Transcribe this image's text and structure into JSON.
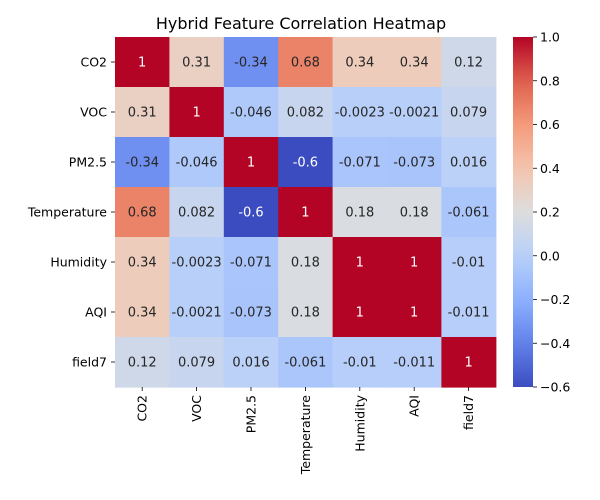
{
  "chart_data": {
    "type": "heatmap",
    "title": "Hybrid Feature Correlation Heatmap",
    "xlabel": "",
    "ylabel": "",
    "rows": [
      "CO2",
      "VOC",
      "PM2.5",
      "Temperature",
      "Humidity",
      "AQI",
      "field7"
    ],
    "columns": [
      "CO2",
      "VOC",
      "PM2.5",
      "Temperature",
      "Humidity",
      "AQI",
      "field7"
    ],
    "values": [
      [
        1,
        0.31,
        -0.34,
        0.68,
        0.34,
        0.34,
        0.12
      ],
      [
        0.31,
        1,
        -0.046,
        0.082,
        -0.0023,
        -0.0021,
        0.079
      ],
      [
        -0.34,
        -0.046,
        1,
        -0.6,
        -0.071,
        -0.073,
        0.016
      ],
      [
        0.68,
        0.082,
        -0.6,
        1,
        0.18,
        0.18,
        -0.061
      ],
      [
        0.34,
        -0.0023,
        -0.071,
        0.18,
        1,
        1,
        -0.01
      ],
      [
        0.34,
        -0.0021,
        -0.073,
        0.18,
        1,
        1,
        -0.011
      ],
      [
        0.12,
        0.079,
        0.016,
        -0.061,
        -0.01,
        -0.011,
        1
      ]
    ],
    "annotations": [
      [
        "1",
        "0.31",
        "-0.34",
        "0.68",
        "0.34",
        "0.34",
        "0.12"
      ],
      [
        "0.31",
        "1",
        "-0.046",
        "0.082",
        "-0.0023",
        "-0.0021",
        "0.079"
      ],
      [
        "-0.34",
        "-0.046",
        "1",
        "-0.6",
        "-0.071",
        "-0.073",
        "0.016"
      ],
      [
        "0.68",
        "0.082",
        "-0.6",
        "1",
        "0.18",
        "0.18",
        "-0.061"
      ],
      [
        "0.34",
        "-0.0023",
        "-0.071",
        "0.18",
        "1",
        "1",
        "-0.01"
      ],
      [
        "0.34",
        "-0.0021",
        "-0.073",
        "0.18",
        "1",
        "1",
        "-0.011"
      ],
      [
        "0.12",
        "0.079",
        "0.016",
        "-0.061",
        "-0.01",
        "-0.011",
        "1"
      ]
    ],
    "colormap": "coolwarm",
    "color_range": [
      -0.6,
      1.0
    ],
    "colorbar_ticks": [
      {
        "value": 1.0,
        "label": "1.0"
      },
      {
        "value": 0.8,
        "label": "0.8"
      },
      {
        "value": 0.6,
        "label": "0.6"
      },
      {
        "value": 0.4,
        "label": "0.4"
      },
      {
        "value": 0.2,
        "label": "0.2"
      },
      {
        "value": 0.0,
        "label": "0.0"
      },
      {
        "value": -0.2,
        "label": "−0.2"
      },
      {
        "value": -0.4,
        "label": "−0.4"
      },
      {
        "value": -0.6,
        "label": "−0.6"
      }
    ],
    "grid": false
  }
}
